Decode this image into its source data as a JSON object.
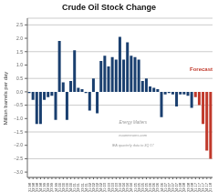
{
  "chart_data": {
    "type": "bar",
    "title": "Crude Oil Stock Change",
    "ylabel": "Million barrels per day",
    "annotations": [
      {
        "text": "Forecast",
        "color": "#c0392b"
      },
      {
        "text": "Energy Matters"
      },
      {
        "text": "euanmearns.com"
      },
      {
        "text": "IEA quarterly data to 3Q 17"
      }
    ],
    "categories": [
      "Q1 98",
      "Q2 98",
      "Q3 98",
      "Q4 98",
      "Q1 99",
      "Q2 99",
      "Q3 99",
      "Q4 99",
      "Q1 00",
      "Q2 00",
      "Q3 00",
      "Q4 00",
      "Q1 01",
      "Q2 01",
      "Q3 01",
      "Q4 01",
      "Q1 02",
      "Q2 02",
      "Q3 02",
      "Q4 02",
      "Q1 03",
      "Q2 03",
      "Q3 03",
      "Q4 03",
      "Q1 04",
      "Q2 04",
      "Q3 04",
      "Q4 04",
      "Q1 05",
      "Q2 05",
      "Q3 05",
      "Q4 05",
      "Q1 06",
      "Q2 06",
      "Q3 06",
      "Q4 06",
      "Q1 07",
      "Q2 07",
      "Q3 07",
      "Q4 07",
      "Q1 08",
      "Q2 08",
      "Q3 08",
      "Q4 08",
      "Q1 17",
      "Q2 17",
      "Q3 17",
      "Q4 17",
      "Q1 18"
    ],
    "values": [
      -0.05,
      -0.3,
      -1.2,
      -1.2,
      -0.3,
      -0.2,
      -0.15,
      -1.05,
      1.9,
      0.35,
      -1.05,
      0.4,
      1.55,
      0.15,
      0.1,
      -0.05,
      -0.7,
      0.5,
      -0.8,
      1.15,
      1.35,
      0.95,
      1.3,
      1.2,
      2.05,
      1.2,
      1.85,
      1.35,
      1.3,
      1.2,
      0.4,
      0.5,
      0.2,
      0.15,
      0.1,
      -0.95,
      -0.1,
      -0.05,
      -0.1,
      -0.55,
      -0.1,
      -0.1,
      -0.15,
      -0.6,
      -0.2,
      -0.5,
      -1.2,
      -2.2,
      -2.5
    ],
    "colors": [
      "#1a3f6f",
      "#1a3f6f",
      "#1a3f6f",
      "#1a3f6f",
      "#1a3f6f",
      "#1a3f6f",
      "#1a3f6f",
      "#1a3f6f",
      "#1a3f6f",
      "#1a3f6f",
      "#1a3f6f",
      "#1a3f6f",
      "#1a3f6f",
      "#1a3f6f",
      "#1a3f6f",
      "#1a3f6f",
      "#1a3f6f",
      "#1a3f6f",
      "#1a3f6f",
      "#1a3f6f",
      "#1a3f6f",
      "#1a3f6f",
      "#1a3f6f",
      "#1a3f6f",
      "#1a3f6f",
      "#1a3f6f",
      "#1a3f6f",
      "#1a3f6f",
      "#1a3f6f",
      "#1a3f6f",
      "#1a3f6f",
      "#1a3f6f",
      "#1a3f6f",
      "#1a3f6f",
      "#1a3f6f",
      "#1a3f6f",
      "#1a3f6f",
      "#1a3f6f",
      "#1a3f6f",
      "#1a3f6f",
      "#1a3f6f",
      "#1a3f6f",
      "#1a3f6f",
      "#1a3f6f",
      "#c0392b",
      "#c0392b",
      "#c0392b",
      "#c0392b",
      "#c0392b"
    ],
    "ylim": [
      -3.2,
      2.75
    ],
    "yticks": [
      {
        "value": -3.0,
        "label": "−3.0"
      },
      {
        "value": -2.5,
        "label": "−2.5"
      },
      {
        "value": -2.0,
        "label": "−2.0"
      },
      {
        "value": -1.5,
        "label": "−1.5"
      },
      {
        "value": -1.0,
        "label": "−1.0"
      },
      {
        "value": -0.5,
        "label": "−0.5"
      },
      {
        "value": 0.0,
        "label": "0.0"
      },
      0.5,
      {
        "value": 1.0,
        "label": "1.0"
      },
      1.5,
      {
        "value": 2.0,
        "label": "2.0"
      },
      2.5
    ],
    "grid": true
  }
}
